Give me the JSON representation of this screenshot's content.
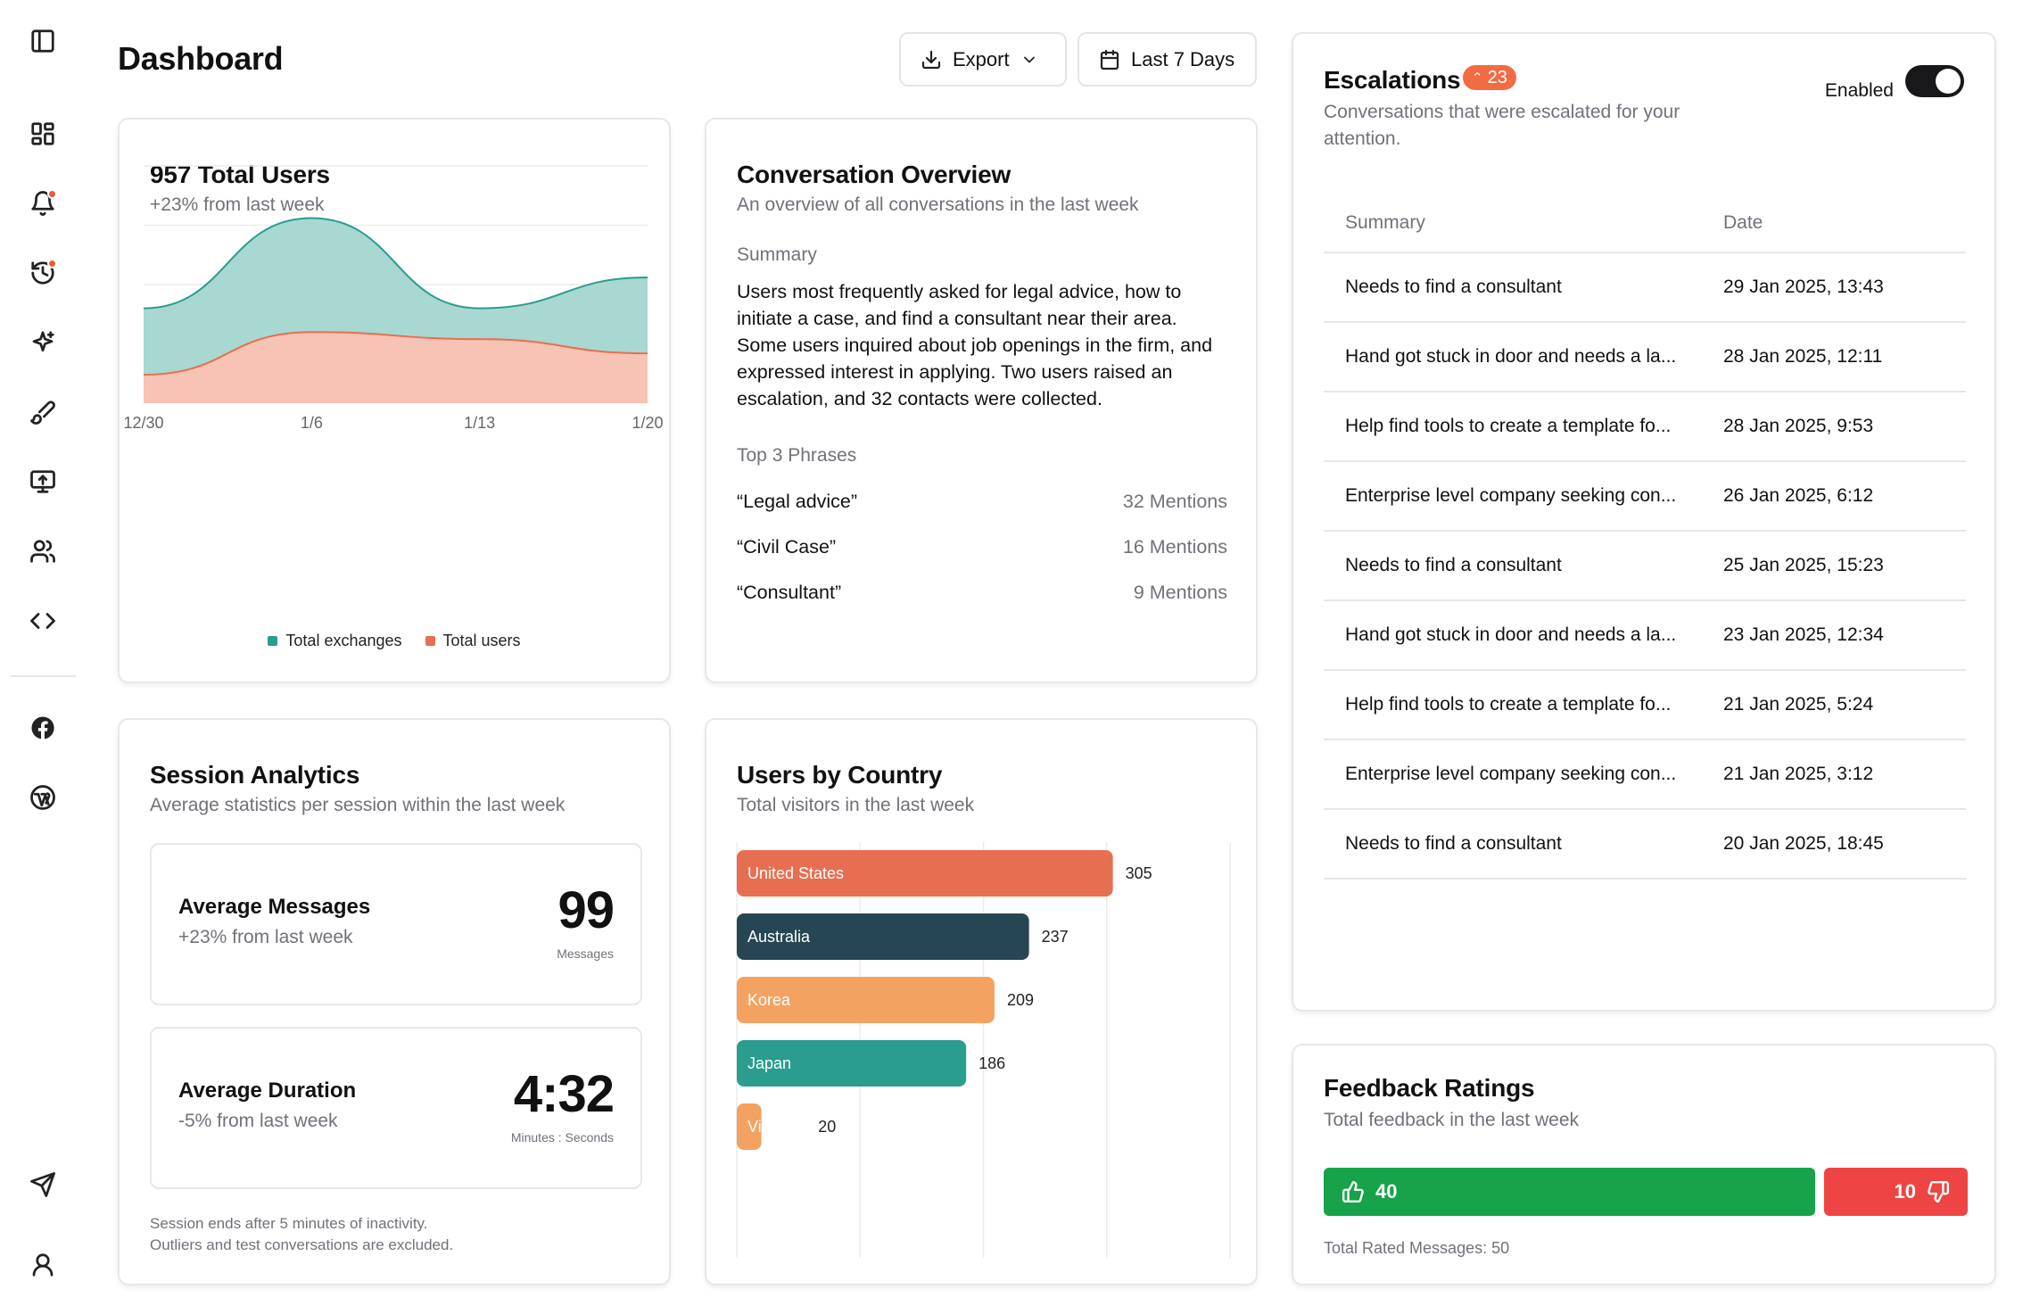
{
  "page": {
    "title": "Dashboard"
  },
  "toolbar": {
    "export_label": "Export",
    "range_label": "Last 7 Days"
  },
  "sidebar": {
    "items": [
      {
        "icon": "sidebar-toggle-icon"
      },
      {
        "icon": "dashboard-icon"
      },
      {
        "icon": "bell-icon",
        "dot": true
      },
      {
        "icon": "history-icon",
        "dot": true
      },
      {
        "icon": "sparkles-icon"
      },
      {
        "icon": "brush-icon"
      },
      {
        "icon": "monitor-upload-icon"
      },
      {
        "icon": "users-icon"
      },
      {
        "icon": "code-icon"
      },
      {
        "icon": "facebook-icon"
      },
      {
        "icon": "wordpress-icon"
      },
      {
        "icon": "send-icon"
      },
      {
        "icon": "user-icon"
      }
    ]
  },
  "users_card": {
    "title": "957 Total Users",
    "subtitle": "+23% from last week",
    "legend": [
      {
        "label": "Total exchanges",
        "color": "#2a9d8f"
      },
      {
        "label": "Total users",
        "color": "#e76f51"
      }
    ]
  },
  "chart_data": {
    "type": "area",
    "x": [
      "12/30",
      "1/6",
      "1/13",
      "1/20"
    ],
    "series": [
      {
        "name": "Total exchanges",
        "color": "#2a9d8f",
        "values": [
          40,
          78,
          40,
          53
        ]
      },
      {
        "name": "Total users",
        "color": "#e76f51",
        "values": [
          12,
          30,
          27,
          21
        ]
      }
    ],
    "ylim": [
      0,
      100
    ],
    "grid": true,
    "legend": "bottom"
  },
  "conversation_card": {
    "title": "Conversation Overview",
    "subtitle": "An overview of all conversations in the last week",
    "summary_label": "Summary",
    "summary": "Users most frequently asked for legal advice, how to initiate a case, and find a consultant near their area. Some users inquired about job openings in the firm, and expressed interest in applying. Two users raised an escalation, and 32 contacts were collected.",
    "phrases_label": "Top 3 Phrases",
    "phrases": [
      {
        "phrase": "“Legal advice”",
        "count": "32 Mentions"
      },
      {
        "phrase": "“Civil Case”",
        "count": "16 Mentions"
      },
      {
        "phrase": "“Consultant”",
        "count": "9 Mentions"
      }
    ]
  },
  "session_card": {
    "title": "Session Analytics",
    "subtitle": "Average statistics per session within the last week",
    "metrics": [
      {
        "title": "Average Messages",
        "sub": "+23% from last week",
        "value": "99",
        "unit": "Messages"
      },
      {
        "title": "Average Duration",
        "sub": "-5% from last week",
        "value": "4:32",
        "unit": "Minutes : Seconds"
      }
    ],
    "note1": "Session ends after 5 minutes of inactivity.",
    "note2": "Outliers and test conversations are excluded."
  },
  "country_card": {
    "title": "Users by Country",
    "subtitle": "Total visitors in the last week",
    "chart": {
      "type": "bar",
      "orientation": "horizontal",
      "categories": [
        "United States",
        "Australia",
        "Korea",
        "Japan",
        "Vietnam"
      ],
      "values": [
        305,
        237,
        209,
        186,
        20
      ],
      "labels": [
        "305",
        "237",
        "209",
        "186",
        "20"
      ],
      "colors": [
        "#e76f51",
        "#264653",
        "#f4a261",
        "#2a9d8f",
        "#f4a261"
      ],
      "xlim": [
        0,
        400
      ]
    }
  },
  "escalations_card": {
    "title": "Escalations",
    "badge": "23",
    "subtitle": "Conversations that were escalated for your attention.",
    "toggle_label": "Enabled",
    "columns": {
      "summary": "Summary",
      "date": "Date"
    },
    "rows": [
      {
        "summary": "Needs to find a consultant",
        "date": "29 Jan 2025, 13:43"
      },
      {
        "summary": "Hand got stuck in door and needs a la...",
        "date": "28 Jan 2025, 12:11"
      },
      {
        "summary": "Help find tools to create a template fo...",
        "date": "28 Jan 2025, 9:53"
      },
      {
        "summary": "Enterprise level company seeking con...",
        "date": "26 Jan 2025, 6:12"
      },
      {
        "summary": "Needs to find a consultant",
        "date": "25 Jan 2025, 15:23"
      },
      {
        "summary": "Hand got stuck in door and needs a la...",
        "date": "23 Jan 2025, 12:34"
      },
      {
        "summary": "Help find tools to create a template fo...",
        "date": "21 Jan 2025, 5:24"
      },
      {
        "summary": "Enterprise level company seeking con...",
        "date": "21 Jan 2025, 3:12"
      },
      {
        "summary": "Needs to find a consultant",
        "date": "20 Jan 2025, 18:45"
      }
    ]
  },
  "feedback_card": {
    "title": "Feedback Ratings",
    "subtitle": "Total feedback in the last week",
    "positive": "40",
    "negative": "10",
    "positive_color": "#16a34a",
    "negative_color": "#ef4444",
    "total": "Total Rated Messages: 50"
  }
}
